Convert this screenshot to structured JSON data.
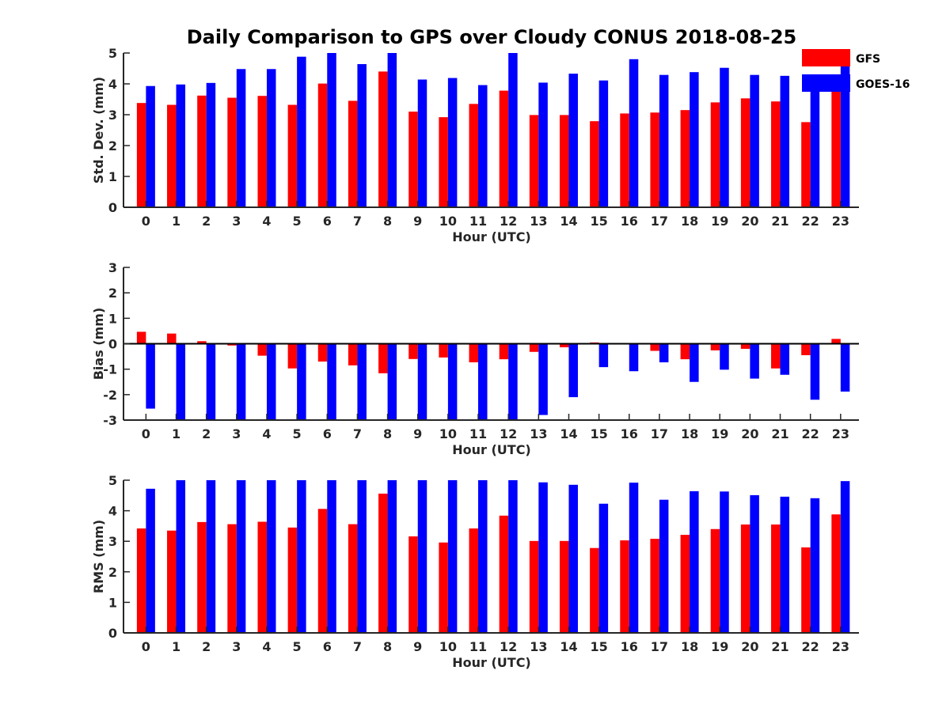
{
  "title": "Daily Comparison to GPS over Cloudy CONUS 2018-08-25",
  "legend": [
    {
      "name": "GFS",
      "color": "#ff0000"
    },
    {
      "name": "GOES-16",
      "color": "#0000ff"
    }
  ],
  "chart_data": [
    {
      "type": "bar",
      "title": "Daily Comparison to GPS over Cloudy CONUS 2018-08-25",
      "xlabel": "Hour (UTC)",
      "ylabel": "Std. Dev. (mm)",
      "ylim": [
        0,
        5
      ],
      "yticks": [
        0,
        1,
        2,
        3,
        4,
        5
      ],
      "categories": [
        "0",
        "1",
        "2",
        "3",
        "4",
        "5",
        "6",
        "7",
        "8",
        "9",
        "10",
        "11",
        "12",
        "13",
        "14",
        "15",
        "16",
        "17",
        "18",
        "19",
        "20",
        "21",
        "22",
        "23"
      ],
      "legend_position": "top-right",
      "grid": false,
      "series": [
        {
          "name": "GFS",
          "color": "#ff0000",
          "values": [
            3.38,
            3.32,
            3.62,
            3.55,
            3.61,
            3.32,
            4.01,
            3.45,
            4.4,
            3.1,
            2.92,
            3.35,
            3.78,
            2.99,
            2.99,
            2.79,
            3.04,
            3.07,
            3.15,
            3.4,
            3.53,
            3.43,
            2.76,
            3.85
          ]
        },
        {
          "name": "GOES-16",
          "color": "#0000ff",
          "values": [
            3.93,
            3.98,
            4.03,
            4.48,
            4.48,
            4.88,
            5.0,
            4.64,
            5.0,
            4.14,
            4.19,
            3.96,
            5.0,
            4.04,
            4.33,
            4.11,
            4.8,
            4.29,
            4.38,
            4.52,
            4.29,
            4.26,
            3.8,
            4.6
          ]
        }
      ]
    },
    {
      "type": "bar",
      "xlabel": "Hour (UTC)",
      "ylabel": "Bias (mm)",
      "ylim": [
        -3,
        3
      ],
      "yticks": [
        -3,
        -2,
        -1,
        0,
        1,
        2,
        3
      ],
      "categories": [
        "0",
        "1",
        "2",
        "3",
        "4",
        "5",
        "6",
        "7",
        "8",
        "9",
        "10",
        "11",
        "12",
        "13",
        "14",
        "15",
        "16",
        "17",
        "18",
        "19",
        "20",
        "21",
        "22",
        "23"
      ],
      "zero_line": true,
      "grid": false,
      "series": [
        {
          "name": "GFS",
          "color": "#ff0000",
          "values": [
            0.47,
            0.4,
            0.1,
            -0.07,
            -0.47,
            -0.97,
            -0.7,
            -0.85,
            -1.16,
            -0.6,
            -0.54,
            -0.73,
            -0.61,
            -0.32,
            -0.14,
            0.05,
            -0.03,
            -0.28,
            -0.61,
            -0.26,
            -0.2,
            -0.97,
            -0.45,
            0.19
          ]
        },
        {
          "name": "GOES-16",
          "color": "#0000ff",
          "values": [
            -2.55,
            -3.0,
            -3.0,
            -3.0,
            -3.0,
            -3.0,
            -3.0,
            -3.0,
            -3.0,
            -3.0,
            -3.0,
            -3.0,
            -3.0,
            -2.8,
            -2.1,
            -0.92,
            -1.08,
            -0.73,
            -1.5,
            -1.02,
            -1.37,
            -1.22,
            -2.2,
            -1.88
          ]
        }
      ]
    },
    {
      "type": "bar",
      "xlabel": "Hour (UTC)",
      "ylabel": "RMS (mm)",
      "ylim": [
        0,
        5
      ],
      "yticks": [
        0,
        1,
        2,
        3,
        4,
        5
      ],
      "categories": [
        "0",
        "1",
        "2",
        "3",
        "4",
        "5",
        "6",
        "7",
        "8",
        "9",
        "10",
        "11",
        "12",
        "13",
        "14",
        "15",
        "16",
        "17",
        "18",
        "19",
        "20",
        "21",
        "22",
        "23"
      ],
      "grid": false,
      "series": [
        {
          "name": "GFS",
          "color": "#ff0000",
          "values": [
            3.42,
            3.35,
            3.63,
            3.56,
            3.64,
            3.45,
            4.06,
            3.56,
            4.56,
            3.16,
            2.96,
            3.42,
            3.84,
            3.01,
            3.01,
            2.78,
            3.03,
            3.08,
            3.21,
            3.4,
            3.55,
            3.55,
            2.8,
            3.88
          ]
        },
        {
          "name": "GOES-16",
          "color": "#0000ff",
          "values": [
            4.72,
            5.0,
            5.0,
            5.0,
            5.0,
            5.0,
            5.0,
            5.0,
            5.0,
            5.0,
            5.0,
            5.0,
            5.0,
            4.93,
            4.85,
            4.23,
            4.92,
            4.36,
            4.64,
            4.63,
            4.51,
            4.46,
            4.41,
            4.97
          ]
        }
      ]
    }
  ]
}
